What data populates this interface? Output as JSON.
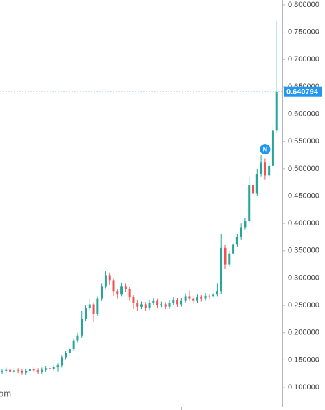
{
  "chart_data": {
    "type": "candlestick",
    "open": [
      0.128,
      0.13,
      0.132,
      0.128,
      0.131,
      0.129,
      0.127,
      0.13,
      0.133,
      0.131,
      0.128,
      0.132,
      0.135,
      0.133,
      0.137,
      0.14,
      0.155,
      0.162,
      0.17,
      0.185,
      0.195,
      0.225,
      0.245,
      0.252,
      0.235,
      0.262,
      0.285,
      0.305,
      0.295,
      0.275,
      0.27,
      0.285,
      0.28,
      0.265,
      0.255,
      0.248,
      0.252,
      0.245,
      0.255,
      0.258,
      0.25,
      0.252,
      0.248,
      0.255,
      0.26,
      0.252,
      0.258,
      0.266,
      0.262,
      0.258,
      0.265,
      0.262,
      0.268,
      0.266,
      0.27,
      0.275,
      0.355,
      0.325,
      0.345,
      0.362,
      0.375,
      0.392,
      0.405,
      0.47,
      0.455,
      0.49,
      0.512,
      0.488,
      0.505,
      0.57
    ],
    "high": [
      0.134,
      0.136,
      0.136,
      0.135,
      0.135,
      0.133,
      0.134,
      0.137,
      0.137,
      0.135,
      0.136,
      0.139,
      0.139,
      0.141,
      0.144,
      0.159,
      0.166,
      0.174,
      0.189,
      0.2,
      0.24,
      0.25,
      0.262,
      0.256,
      0.266,
      0.29,
      0.312,
      0.31,
      0.299,
      0.28,
      0.292,
      0.29,
      0.284,
      0.269,
      0.259,
      0.257,
      0.256,
      0.26,
      0.263,
      0.262,
      0.257,
      0.256,
      0.26,
      0.265,
      0.264,
      0.263,
      0.272,
      0.277,
      0.266,
      0.27,
      0.269,
      0.273,
      0.272,
      0.275,
      0.29,
      0.38,
      0.36,
      0.35,
      0.368,
      0.38,
      0.4,
      0.41,
      0.485,
      0.478,
      0.5,
      0.525,
      0.518,
      0.51,
      0.58,
      0.77
    ],
    "low": [
      0.124,
      0.126,
      0.124,
      0.124,
      0.125,
      0.123,
      0.123,
      0.126,
      0.127,
      0.124,
      0.124,
      0.128,
      0.129,
      0.129,
      0.128,
      0.136,
      0.151,
      0.158,
      0.166,
      0.181,
      0.191,
      0.221,
      0.24,
      0.22,
      0.231,
      0.258,
      0.281,
      0.288,
      0.268,
      0.262,
      0.266,
      0.274,
      0.258,
      0.244,
      0.24,
      0.243,
      0.24,
      0.241,
      0.25,
      0.245,
      0.246,
      0.243,
      0.244,
      0.251,
      0.247,
      0.248,
      0.254,
      0.258,
      0.253,
      0.254,
      0.257,
      0.258,
      0.261,
      0.262,
      0.266,
      0.271,
      0.316,
      0.32,
      0.34,
      0.357,
      0.37,
      0.388,
      0.4,
      0.44,
      0.45,
      0.485,
      0.48,
      0.483,
      0.5,
      0.565
    ],
    "close": [
      0.13,
      0.132,
      0.128,
      0.131,
      0.129,
      0.127,
      0.13,
      0.133,
      0.131,
      0.128,
      0.132,
      0.135,
      0.133,
      0.137,
      0.14,
      0.155,
      0.162,
      0.17,
      0.185,
      0.195,
      0.225,
      0.245,
      0.252,
      0.235,
      0.262,
      0.285,
      0.305,
      0.295,
      0.275,
      0.27,
      0.285,
      0.28,
      0.265,
      0.255,
      0.248,
      0.252,
      0.245,
      0.255,
      0.258,
      0.25,
      0.252,
      0.248,
      0.255,
      0.26,
      0.252,
      0.258,
      0.266,
      0.262,
      0.258,
      0.265,
      0.262,
      0.268,
      0.266,
      0.27,
      0.275,
      0.355,
      0.325,
      0.345,
      0.362,
      0.375,
      0.392,
      0.405,
      0.47,
      0.455,
      0.49,
      0.512,
      0.488,
      0.505,
      0.57,
      0.640794
    ],
    "up_color": "#26a69a",
    "down_color": "#ef5350",
    "last_price": 0.640794,
    "last_price_color": "#2196f3",
    "marker": "N",
    "watermark": "om",
    "ylim": [
      0.0647,
      0.8088
    ],
    "yticks": [
      {
        "value": 0.1,
        "label": "0.100000"
      },
      {
        "value": 0.15,
        "label": "0.150000"
      },
      {
        "value": 0.2,
        "label": "0.200000"
      },
      {
        "value": 0.25,
        "label": "0.250000"
      },
      {
        "value": 0.3,
        "label": "0.300000"
      },
      {
        "value": 0.35,
        "label": "0.350000"
      },
      {
        "value": 0.4,
        "label": "0.400000"
      },
      {
        "value": 0.45,
        "label": "0.450000"
      },
      {
        "value": 0.5,
        "label": "0.500000"
      },
      {
        "value": 0.55,
        "label": "0.550000"
      },
      {
        "value": 0.6,
        "label": "0.600000"
      },
      {
        "value": 0.65,
        "label": "0.650000"
      },
      {
        "value": 0.7,
        "label": "0.700000"
      },
      {
        "value": 0.75,
        "label": "0.750000"
      },
      {
        "value": 0.8,
        "label": "0.800000"
      }
    ]
  }
}
